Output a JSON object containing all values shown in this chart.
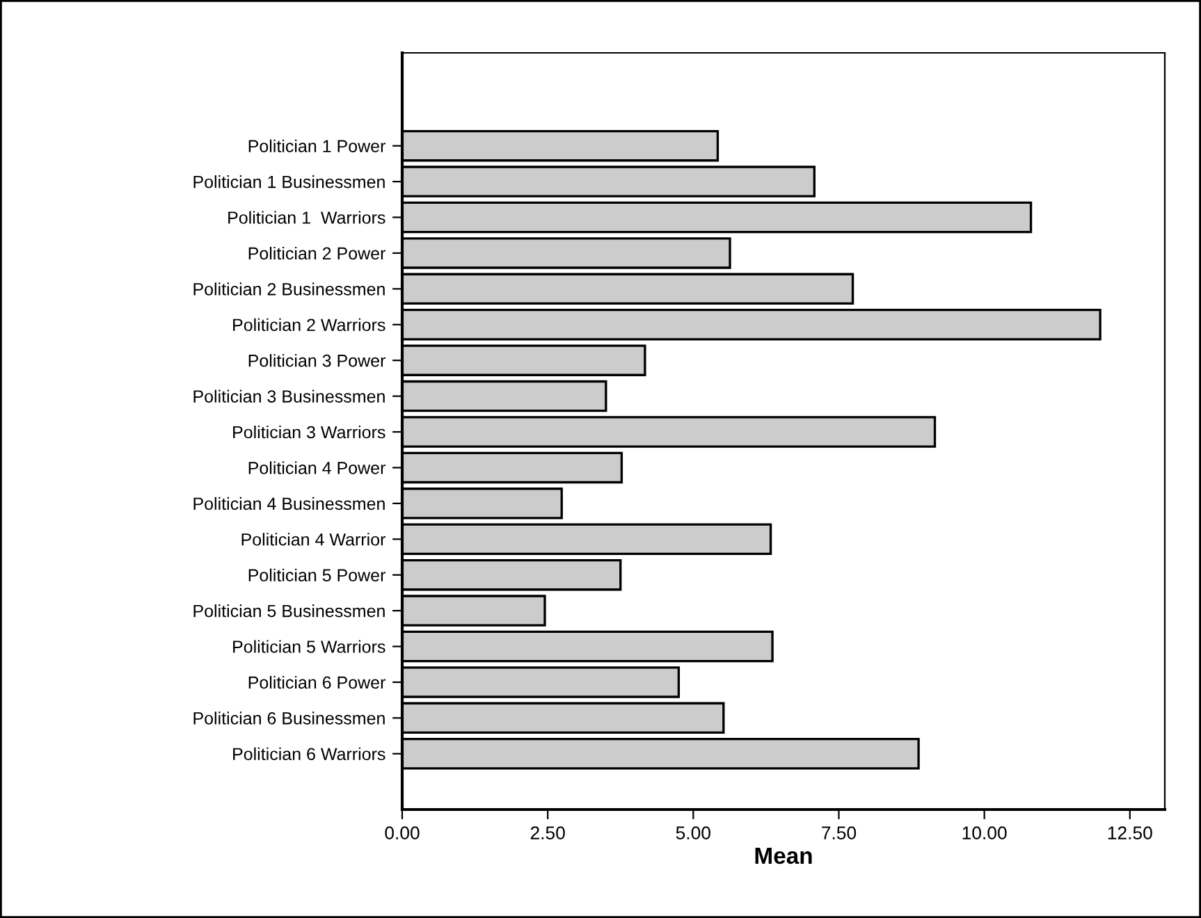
{
  "chart_data": {
    "type": "bar",
    "orientation": "horizontal",
    "xlabel": "Mean",
    "categories": [
      "Politician 1 Power",
      "Politician 1 Businessmen",
      "Politician 1  Warriors",
      "Politician 2 Power",
      "Politician 2 Businessmen",
      "Politician 2 Warriors",
      "Politician 3 Power",
      "Politician 3 Businessmen",
      "Politician 3 Warriors",
      "Politician 4 Power",
      "Politician 4 Businessmen",
      "Politician 4 Warrior",
      "Politician 5 Power",
      "Politician 5 Businessmen",
      "Politician 5 Warriors",
      "Politician 6 Power",
      "Politician 6 Businessmen",
      "Politician 6 Warriors"
    ],
    "values": [
      5.42,
      7.08,
      10.8,
      5.63,
      7.74,
      11.99,
      4.17,
      3.5,
      9.15,
      3.77,
      2.74,
      6.33,
      3.75,
      2.45,
      6.36,
      4.75,
      5.52,
      8.87
    ],
    "color": "#cccccc",
    "xlim": [
      0,
      13.1
    ],
    "xticks": [
      {
        "value": 0,
        "label": "0.00"
      },
      {
        "value": 2.5,
        "label": "2.50"
      },
      {
        "value": 5,
        "label": "5.00"
      },
      {
        "value": 7.5,
        "label": "7.50"
      },
      {
        "value": 10,
        "label": "10.00"
      },
      {
        "value": 12.5,
        "label": "12.50"
      }
    ],
    "grid": false,
    "legend": false
  }
}
